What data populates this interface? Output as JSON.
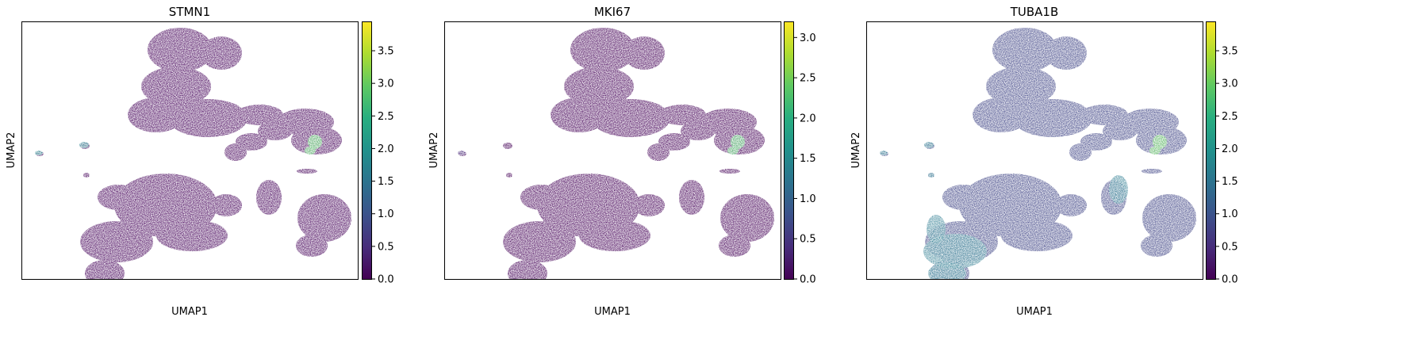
{
  "figure": {
    "panels": [
      {
        "title": "STMN1",
        "xlabel": "UMAP1",
        "ylabel": "UMAP2",
        "ticks": [
          "0.0",
          "0.5",
          "1.0",
          "1.5",
          "2.0",
          "2.5",
          "3.0",
          "3.5"
        ]
      },
      {
        "title": "MKI67",
        "xlabel": "UMAP1",
        "ylabel": "UMAP2",
        "ticks": [
          "0.0",
          "0.5",
          "1.0",
          "1.5",
          "2.0",
          "2.5",
          "3.0"
        ]
      },
      {
        "title": "TUBA1B",
        "xlabel": "UMAP1",
        "ylabel": "UMAP2",
        "ticks": [
          "0.0",
          "0.5",
          "1.0",
          "1.5",
          "2.0",
          "2.5",
          "3.0",
          "3.5"
        ]
      }
    ]
  },
  "chart_data": [
    {
      "type": "scatter",
      "title": "STMN1",
      "xlabel": "UMAP1",
      "ylabel": "UMAP2",
      "colormap": "viridis",
      "color_range": [
        0,
        3.95
      ],
      "grid": false,
      "x_ticks_shown": false,
      "y_ticks_shown": false,
      "colorbar_ticks": [
        0.0,
        0.5,
        1.0,
        1.5,
        2.0,
        2.5,
        3.0,
        3.5
      ],
      "dominant_value": 0.15,
      "highlight_regions": [
        {
          "region": "far-left small cluster",
          "value": 1.8
        },
        {
          "region": "left small cluster",
          "value": 1.7
        },
        {
          "region": "right tip of upper arm",
          "value": 2.9
        }
      ]
    },
    {
      "type": "scatter",
      "title": "MKI67",
      "xlabel": "UMAP1",
      "ylabel": "UMAP2",
      "colormap": "viridis",
      "color_range": [
        0,
        3.2
      ],
      "grid": false,
      "x_ticks_shown": false,
      "y_ticks_shown": false,
      "colorbar_ticks": [
        0.0,
        0.5,
        1.0,
        1.5,
        2.0,
        2.5,
        3.0
      ],
      "dominant_value": 0.05,
      "highlight_regions": [
        {
          "region": "far-left small cluster",
          "value": 0.4
        },
        {
          "region": "right tip of upper arm",
          "value": 2.3
        }
      ]
    },
    {
      "type": "scatter",
      "title": "TUBA1B",
      "xlabel": "UMAP1",
      "ylabel": "UMAP2",
      "colormap": "viridis",
      "color_range": [
        0,
        3.95
      ],
      "grid": false,
      "x_ticks_shown": false,
      "y_ticks_shown": false,
      "colorbar_ticks": [
        0.0,
        0.5,
        1.0,
        1.5,
        2.0,
        2.5,
        3.0,
        3.5
      ],
      "dominant_value": 0.9,
      "highlight_regions": [
        {
          "region": "lower-left lobe",
          "value": 1.6
        },
        {
          "region": "central-right lobe tip",
          "value": 1.6
        },
        {
          "region": "left small clusters",
          "value": 1.6
        },
        {
          "region": "right tip of upper arm",
          "value": 3.0
        }
      ]
    }
  ]
}
